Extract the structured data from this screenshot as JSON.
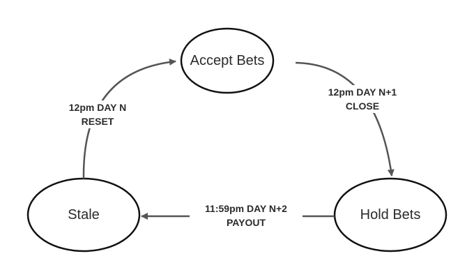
{
  "nodes": {
    "accept": "Accept Bets",
    "hold": "Hold Bets",
    "stale": "Stale"
  },
  "edges": {
    "close": {
      "time": "12pm DAY N+1",
      "action": "CLOSE"
    },
    "payout": {
      "time": "11:59pm DAY N+2",
      "action": "PAYOUT"
    },
    "reset": {
      "time": "12pm DAY N",
      "action": "RESET"
    }
  },
  "colors": {
    "stroke": "#111111",
    "arrow": "#555555",
    "text": "#2b2b2b"
  }
}
